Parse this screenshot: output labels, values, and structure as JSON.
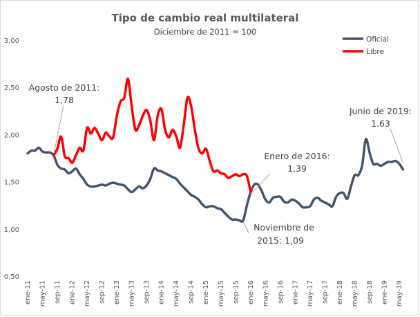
{
  "chart_data": {
    "type": "line",
    "title": "Tipo de cambio real multilateral",
    "subtitle": "Diciembre de 2011 = 100",
    "ylim": [
      0.5,
      3.0
    ],
    "yticks": [
      "0,50",
      "1,00",
      "1,50",
      "2,00",
      "2,50",
      "3,00"
    ],
    "ytick_values": [
      0.5,
      1.0,
      1.5,
      2.0,
      2.5,
      3.0
    ],
    "xtick_labels": [
      "ene-11",
      "may-11",
      "sep-11",
      "ene-12",
      "may-12",
      "sep-12",
      "ene-13",
      "may-13",
      "sep-13",
      "ene-14",
      "may-14",
      "sep-14",
      "ene-15",
      "may-15",
      "sep-15",
      "ene-16",
      "may-16",
      "sep-16",
      "ene-17",
      "may-17",
      "sep-17",
      "ene-18",
      "may-18",
      "sep-18",
      "ene-19",
      "may-19"
    ],
    "x": [
      "ene-11",
      "feb-11",
      "mar-11",
      "abr-11",
      "may-11",
      "jun-11",
      "jul-11",
      "ago-11",
      "sep-11",
      "oct-11",
      "nov-11",
      "dic-11",
      "ene-12",
      "feb-12",
      "mar-12",
      "abr-12",
      "may-12",
      "jun-12",
      "jul-12",
      "ago-12",
      "sep-12",
      "oct-12",
      "nov-12",
      "dic-12",
      "ene-13",
      "feb-13",
      "mar-13",
      "abr-13",
      "may-13",
      "jun-13",
      "jul-13",
      "ago-13",
      "sep-13",
      "oct-13",
      "nov-13",
      "dic-13",
      "ene-14",
      "feb-14",
      "mar-14",
      "abr-14",
      "may-14",
      "jun-14",
      "jul-14",
      "ago-14",
      "sep-14",
      "oct-14",
      "nov-14",
      "dic-14",
      "ene-15",
      "feb-15",
      "mar-15",
      "abr-15",
      "may-15",
      "jun-15",
      "jul-15",
      "ago-15",
      "sep-15",
      "oct-15",
      "nov-15",
      "dic-15",
      "ene-16",
      "feb-16",
      "mar-16",
      "abr-16",
      "may-16",
      "jun-16",
      "jul-16",
      "ago-16",
      "sep-16",
      "oct-16",
      "nov-16",
      "dic-16",
      "ene-17",
      "feb-17",
      "mar-17",
      "abr-17",
      "may-17",
      "jun-17",
      "jul-17",
      "ago-17",
      "sep-17",
      "oct-17",
      "nov-17",
      "dic-17",
      "ene-18",
      "feb-18",
      "mar-18",
      "abr-18",
      "may-18",
      "jun-18",
      "jul-18",
      "ago-18",
      "sep-18",
      "oct-18",
      "nov-18",
      "dic-18",
      "ene-19",
      "feb-19",
      "mar-19",
      "abr-19",
      "may-19",
      "jun-19"
    ],
    "series": [
      {
        "name": "Oficial",
        "color": "#44546A",
        "values": [
          1.8,
          1.83,
          1.83,
          1.86,
          1.82,
          1.81,
          1.81,
          1.78,
          1.68,
          1.64,
          1.63,
          1.59,
          1.61,
          1.64,
          1.58,
          1.53,
          1.47,
          1.45,
          1.45,
          1.46,
          1.47,
          1.46,
          1.48,
          1.49,
          1.48,
          1.47,
          1.46,
          1.42,
          1.39,
          1.42,
          1.45,
          1.43,
          1.46,
          1.53,
          1.64,
          1.62,
          1.61,
          1.59,
          1.57,
          1.55,
          1.53,
          1.48,
          1.44,
          1.4,
          1.36,
          1.34,
          1.31,
          1.26,
          1.23,
          1.24,
          1.24,
          1.22,
          1.21,
          1.17,
          1.13,
          1.1,
          1.1,
          1.09,
          1.09,
          1.25,
          1.39,
          1.47,
          1.47,
          1.4,
          1.31,
          1.28,
          1.33,
          1.34,
          1.34,
          1.29,
          1.28,
          1.31,
          1.3,
          1.27,
          1.23,
          1.23,
          1.24,
          1.31,
          1.33,
          1.3,
          1.28,
          1.26,
          1.24,
          1.34,
          1.38,
          1.38,
          1.32,
          1.45,
          1.57,
          1.57,
          1.67,
          1.95,
          1.81,
          1.69,
          1.69,
          1.67,
          1.69,
          1.71,
          1.71,
          1.72,
          1.69,
          1.63
        ]
      },
      {
        "name": "Libre",
        "color": "#FF0000",
        "values": [
          null,
          null,
          null,
          null,
          null,
          null,
          null,
          1.78,
          1.85,
          1.98,
          1.77,
          1.75,
          1.7,
          1.78,
          1.86,
          1.83,
          2.07,
          2.01,
          2.07,
          2.01,
          1.94,
          2.02,
          1.98,
          1.97,
          2.2,
          2.35,
          2.39,
          2.59,
          2.3,
          2.05,
          2.1,
          2.2,
          2.26,
          2.15,
          1.94,
          2.2,
          2.27,
          2.05,
          1.97,
          2.05,
          1.98,
          1.86,
          2.1,
          2.39,
          2.3,
          2.05,
          1.85,
          1.8,
          1.85,
          1.72,
          1.61,
          1.62,
          1.59,
          1.58,
          1.54,
          1.56,
          1.58,
          1.56,
          1.58,
          1.56,
          1.39,
          null,
          null,
          null,
          null,
          null,
          null,
          null,
          null,
          null,
          null,
          null,
          null,
          null,
          null,
          null,
          null,
          null,
          null,
          null,
          null,
          null,
          null,
          null,
          null,
          null,
          null,
          null,
          null,
          null,
          null,
          null,
          null,
          null,
          null,
          null,
          null,
          null,
          null,
          null,
          null,
          null
        ]
      }
    ],
    "legend": "top-right",
    "grid": false,
    "annotations": [
      {
        "line1": "Agosto de 2011:",
        "line2": "1,78",
        "x": "ago-11"
      },
      {
        "line1": "Enero de 2016:",
        "line2": "1,39",
        "x": "ene-16"
      },
      {
        "line1": "Noviembre de",
        "line2": "2015: 1,09",
        "x": "nov-15"
      },
      {
        "line1": "Junio de 2019:",
        "line2": "1.63",
        "x": "jun-19"
      }
    ]
  }
}
